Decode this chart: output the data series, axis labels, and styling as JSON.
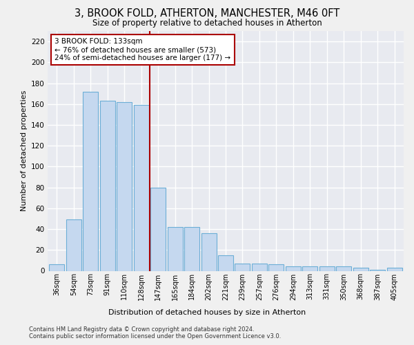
{
  "title": "3, BROOK FOLD, ATHERTON, MANCHESTER, M46 0FT",
  "subtitle": "Size of property relative to detached houses in Atherton",
  "xlabel": "Distribution of detached houses by size in Atherton",
  "ylabel": "Number of detached properties",
  "categories": [
    "36sqm",
    "54sqm",
    "73sqm",
    "91sqm",
    "110sqm",
    "128sqm",
    "147sqm",
    "165sqm",
    "184sqm",
    "202sqm",
    "221sqm",
    "239sqm",
    "257sqm",
    "276sqm",
    "294sqm",
    "313sqm",
    "331sqm",
    "350sqm",
    "368sqm",
    "387sqm",
    "405sqm"
  ],
  "values": [
    6,
    49,
    172,
    163,
    162,
    159,
    80,
    42,
    42,
    36,
    15,
    7,
    7,
    6,
    4,
    4,
    4,
    4,
    3,
    1,
    3
  ],
  "bar_color": "#c5d8ef",
  "bar_edge_color": "#6baed6",
  "highlight_line_color": "#aa0000",
  "annotation_text": "3 BROOK FOLD: 133sqm\n← 76% of detached houses are smaller (573)\n24% of semi-detached houses are larger (177) →",
  "annotation_box_color": "#ffffff",
  "annotation_box_edge_color": "#aa0000",
  "ylim": [
    0,
    230
  ],
  "yticks": [
    0,
    20,
    40,
    60,
    80,
    100,
    120,
    140,
    160,
    180,
    200,
    220
  ],
  "bg_color": "#e8eaf0",
  "grid_color": "#ffffff",
  "title_fontsize": 10.5,
  "subtitle_fontsize": 8.5,
  "footer": "Contains HM Land Registry data © Crown copyright and database right 2024.\nContains public sector information licensed under the Open Government Licence v3.0."
}
